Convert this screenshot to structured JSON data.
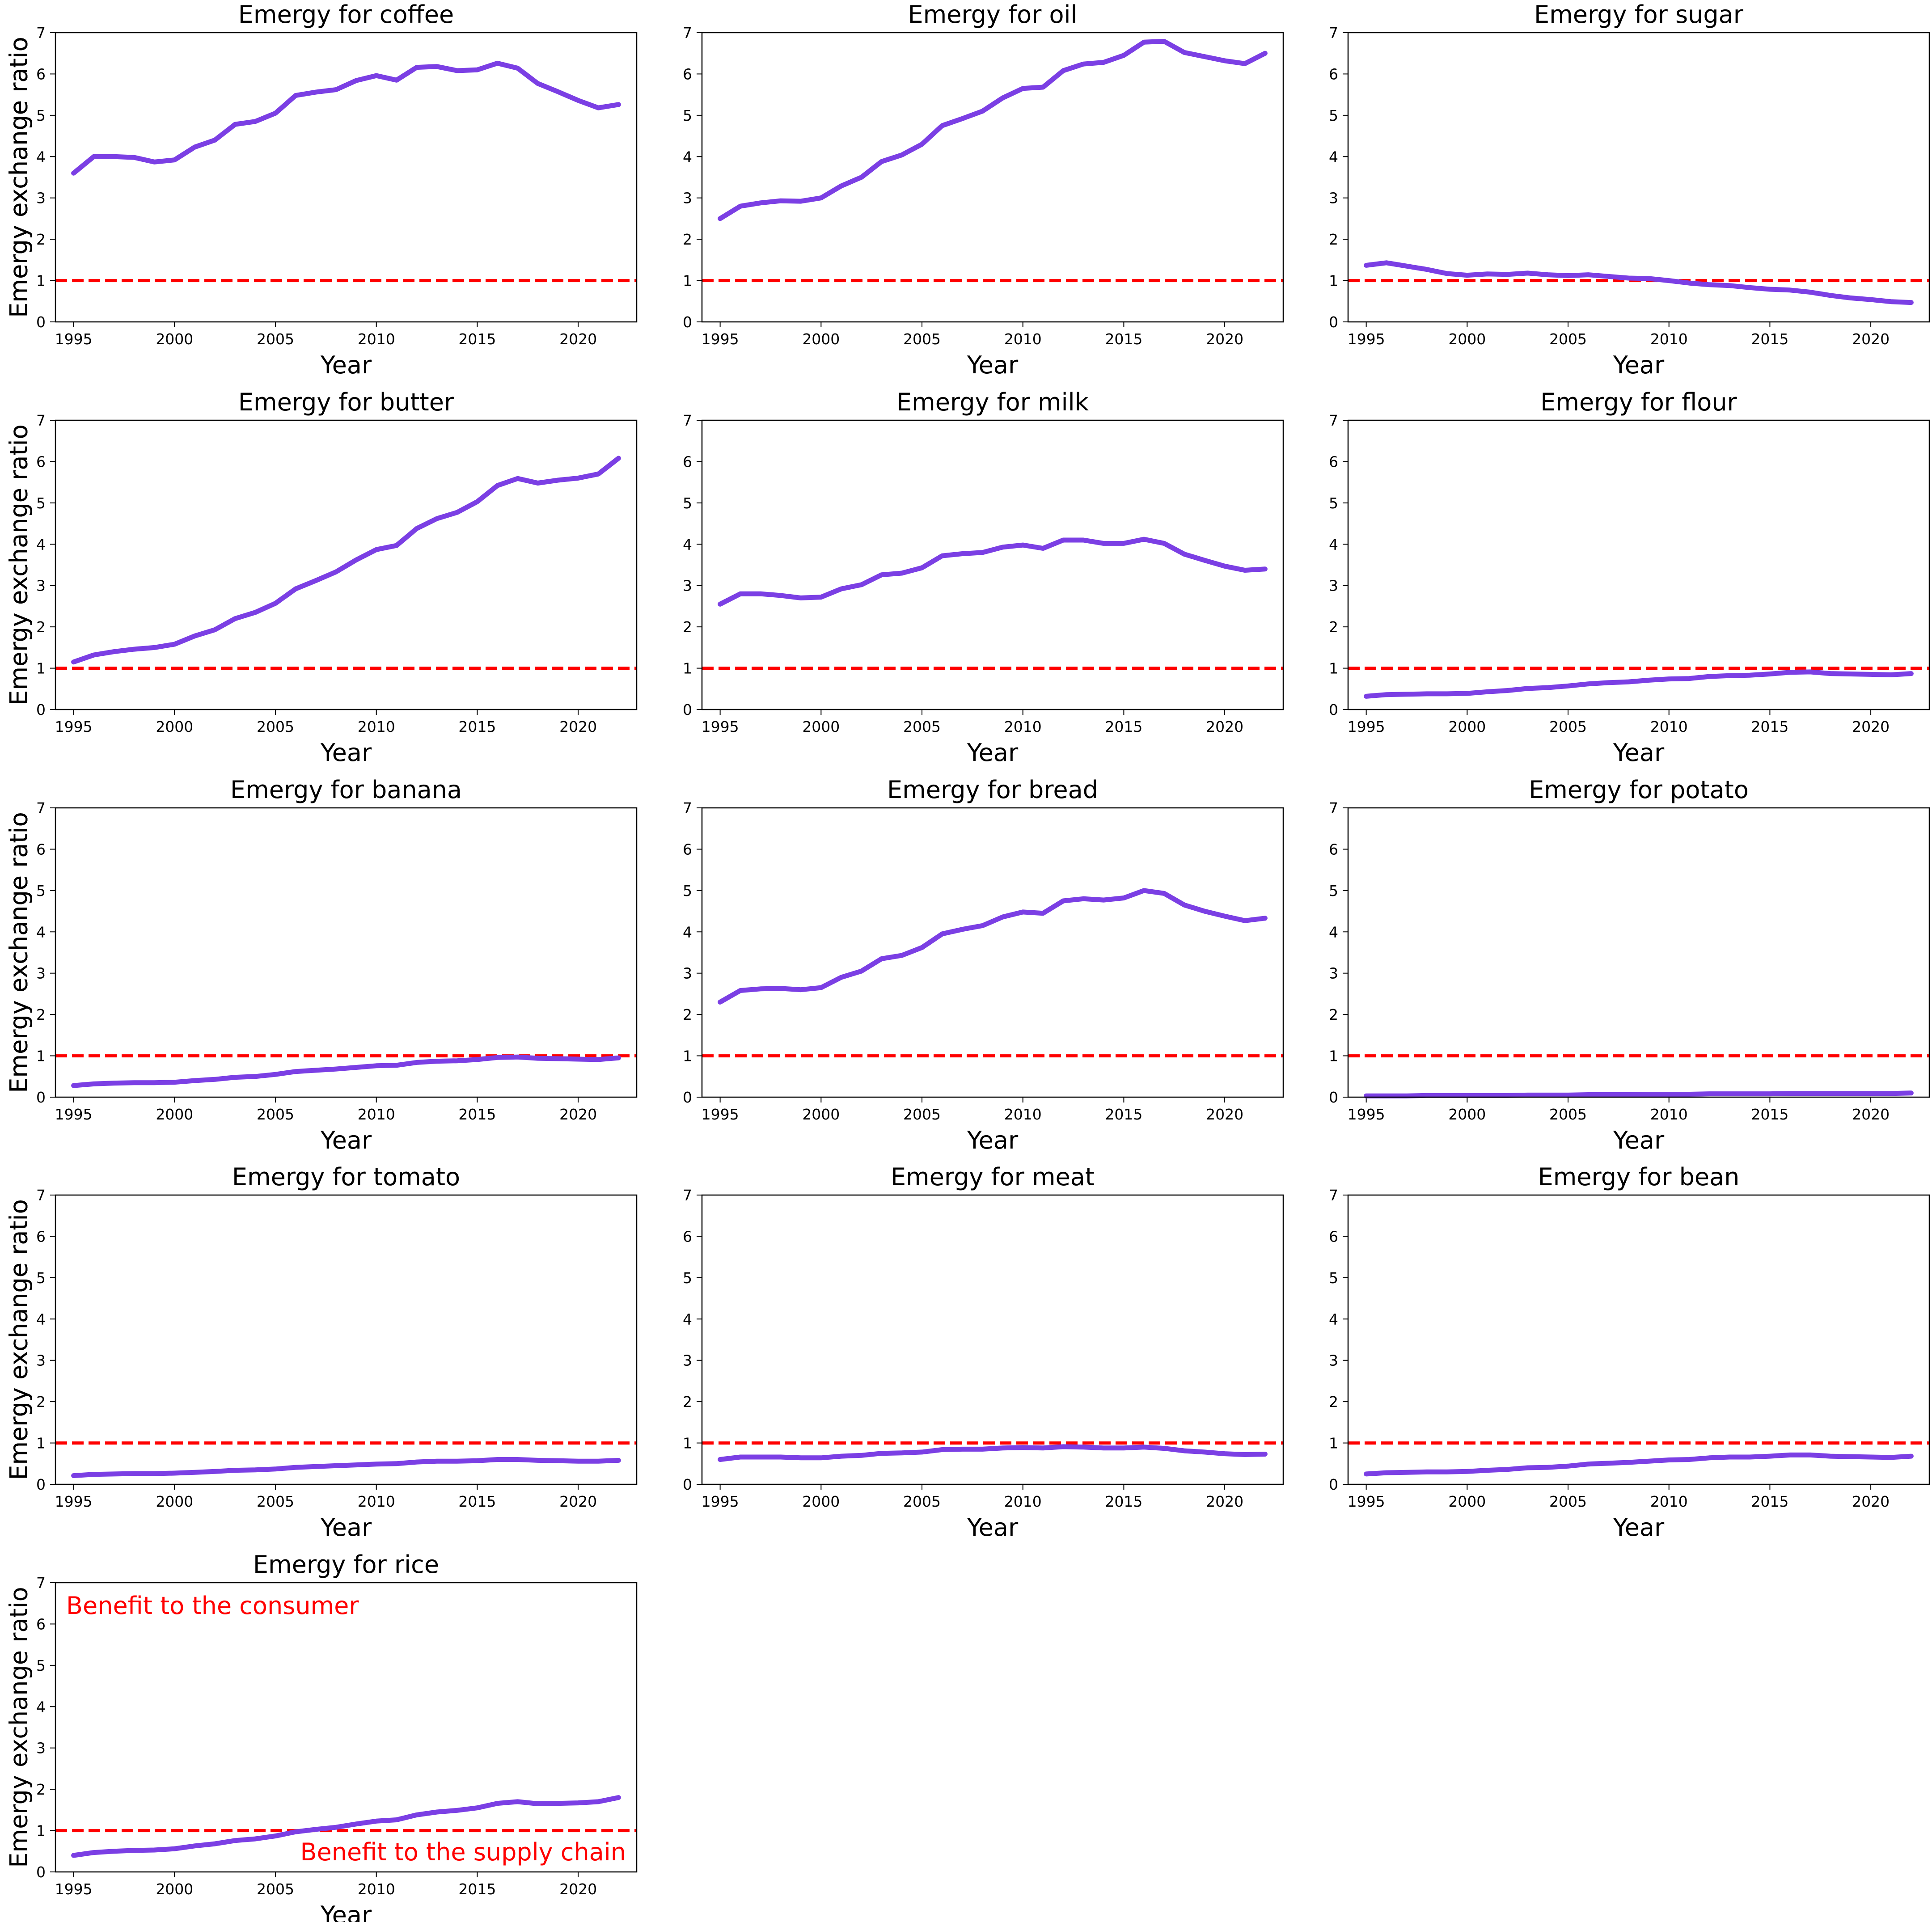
{
  "chart_data": {
    "type": "line",
    "layout": "small-multiples",
    "rows": 5,
    "cols": 3,
    "x": [
      1995,
      1996,
      1997,
      1998,
      1999,
      2000,
      2001,
      2002,
      2003,
      2004,
      2005,
      2006,
      2007,
      2008,
      2009,
      2010,
      2011,
      2012,
      2013,
      2014,
      2015,
      2016,
      2017,
      2018,
      2019,
      2020,
      2021,
      2022
    ],
    "xticks": [
      1995,
      2000,
      2005,
      2010,
      2015,
      2020
    ],
    "xlim": [
      1994.1,
      2022.9
    ],
    "yticks": [
      0,
      1,
      2,
      3,
      4,
      5,
      6,
      7
    ],
    "ylim": [
      0,
      7
    ],
    "xlabel": "Year",
    "ylabel": "Emergy exchange ratio",
    "reference_line": {
      "y": 1,
      "color": "#ff0000",
      "style": "dashed"
    },
    "line_color": "#7b3fe4",
    "grid": false,
    "panels": [
      {
        "title": "Emergy for coffee",
        "values": [
          3.6,
          4.0,
          4.0,
          3.98,
          3.87,
          3.92,
          4.23,
          4.4,
          4.78,
          4.85,
          5.05,
          5.48,
          5.56,
          5.62,
          5.84,
          5.96,
          5.85,
          6.16,
          6.18,
          6.08,
          6.1,
          6.26,
          6.14,
          5.77,
          5.57,
          5.36,
          5.18,
          5.26
        ]
      },
      {
        "title": "Emergy for oil",
        "values": [
          2.5,
          2.8,
          2.88,
          2.93,
          2.92,
          3.0,
          3.29,
          3.5,
          3.88,
          4.04,
          4.3,
          4.75,
          4.92,
          5.1,
          5.42,
          5.65,
          5.68,
          6.08,
          6.24,
          6.28,
          6.45,
          6.77,
          6.79,
          6.52,
          6.42,
          6.32,
          6.25,
          6.5
        ]
      },
      {
        "title": "Emergy for sugar",
        "values": [
          1.37,
          1.43,
          1.35,
          1.27,
          1.17,
          1.13,
          1.16,
          1.15,
          1.18,
          1.14,
          1.12,
          1.14,
          1.1,
          1.06,
          1.05,
          1.0,
          0.94,
          0.9,
          0.88,
          0.83,
          0.79,
          0.77,
          0.72,
          0.64,
          0.58,
          0.54,
          0.49,
          0.47
        ]
      },
      {
        "title": "Emergy for butter",
        "values": [
          1.15,
          1.32,
          1.4,
          1.46,
          1.5,
          1.58,
          1.78,
          1.93,
          2.2,
          2.35,
          2.57,
          2.92,
          3.12,
          3.33,
          3.62,
          3.87,
          3.97,
          4.38,
          4.62,
          4.77,
          5.03,
          5.42,
          5.59,
          5.48,
          5.55,
          5.6,
          5.7,
          6.08
        ]
      },
      {
        "title": "Emergy for milk",
        "values": [
          2.55,
          2.8,
          2.8,
          2.76,
          2.7,
          2.72,
          2.92,
          3.02,
          3.26,
          3.3,
          3.43,
          3.72,
          3.77,
          3.8,
          3.93,
          3.98,
          3.9,
          4.1,
          4.1,
          4.02,
          4.02,
          4.12,
          4.02,
          3.76,
          3.61,
          3.47,
          3.37,
          3.4
        ]
      },
      {
        "title": "Emergy for flour",
        "values": [
          0.32,
          0.36,
          0.37,
          0.38,
          0.38,
          0.39,
          0.43,
          0.46,
          0.51,
          0.53,
          0.57,
          0.62,
          0.65,
          0.67,
          0.71,
          0.74,
          0.75,
          0.8,
          0.82,
          0.83,
          0.86,
          0.9,
          0.91,
          0.87,
          0.86,
          0.85,
          0.84,
          0.87
        ]
      },
      {
        "title": "Emergy for banana",
        "values": [
          0.28,
          0.32,
          0.34,
          0.35,
          0.35,
          0.36,
          0.4,
          0.43,
          0.48,
          0.5,
          0.55,
          0.62,
          0.65,
          0.68,
          0.72,
          0.76,
          0.77,
          0.84,
          0.87,
          0.88,
          0.91,
          0.96,
          0.97,
          0.94,
          0.93,
          0.92,
          0.91,
          0.95
        ]
      },
      {
        "title": "Emergy for bread",
        "values": [
          2.3,
          2.58,
          2.62,
          2.63,
          2.6,
          2.65,
          2.9,
          3.05,
          3.35,
          3.43,
          3.62,
          3.95,
          4.06,
          4.15,
          4.36,
          4.48,
          4.45,
          4.75,
          4.8,
          4.77,
          4.82,
          5.0,
          4.93,
          4.65,
          4.5,
          4.38,
          4.27,
          4.33
        ]
      },
      {
        "title": "Emergy for potato",
        "values": [
          0.03,
          0.03,
          0.03,
          0.04,
          0.04,
          0.04,
          0.04,
          0.04,
          0.05,
          0.05,
          0.05,
          0.06,
          0.06,
          0.06,
          0.07,
          0.07,
          0.07,
          0.08,
          0.08,
          0.08,
          0.08,
          0.09,
          0.09,
          0.09,
          0.09,
          0.09,
          0.09,
          0.1
        ]
      },
      {
        "title": "Emergy for tomato",
        "values": [
          0.21,
          0.24,
          0.25,
          0.26,
          0.26,
          0.27,
          0.29,
          0.31,
          0.34,
          0.35,
          0.37,
          0.41,
          0.43,
          0.45,
          0.47,
          0.49,
          0.5,
          0.54,
          0.56,
          0.56,
          0.57,
          0.6,
          0.6,
          0.58,
          0.57,
          0.56,
          0.56,
          0.58
        ]
      },
      {
        "title": "Emergy for meat",
        "values": [
          0.6,
          0.66,
          0.66,
          0.66,
          0.64,
          0.64,
          0.68,
          0.7,
          0.75,
          0.76,
          0.78,
          0.84,
          0.85,
          0.85,
          0.88,
          0.89,
          0.88,
          0.91,
          0.9,
          0.88,
          0.88,
          0.9,
          0.87,
          0.81,
          0.78,
          0.74,
          0.72,
          0.73
        ]
      },
      {
        "title": "Emergy for bean",
        "values": [
          0.25,
          0.28,
          0.29,
          0.3,
          0.3,
          0.31,
          0.34,
          0.36,
          0.4,
          0.41,
          0.44,
          0.49,
          0.51,
          0.53,
          0.56,
          0.59,
          0.6,
          0.64,
          0.66,
          0.66,
          0.68,
          0.71,
          0.71,
          0.68,
          0.67,
          0.66,
          0.65,
          0.68
        ]
      },
      {
        "title": "Emergy for rice",
        "values": [
          0.4,
          0.47,
          0.5,
          0.52,
          0.53,
          0.56,
          0.63,
          0.68,
          0.76,
          0.8,
          0.87,
          0.97,
          1.03,
          1.08,
          1.16,
          1.23,
          1.26,
          1.38,
          1.45,
          1.49,
          1.55,
          1.66,
          1.7,
          1.65,
          1.66,
          1.67,
          1.7,
          1.8
        ],
        "annotations": [
          {
            "text": "Benefit to the consumer",
            "color": "#ff0000",
            "position": "top-left"
          },
          {
            "text": "Benefit to the supply chain",
            "color": "#ff0000",
            "position": "bottom-right"
          }
        ]
      }
    ]
  }
}
